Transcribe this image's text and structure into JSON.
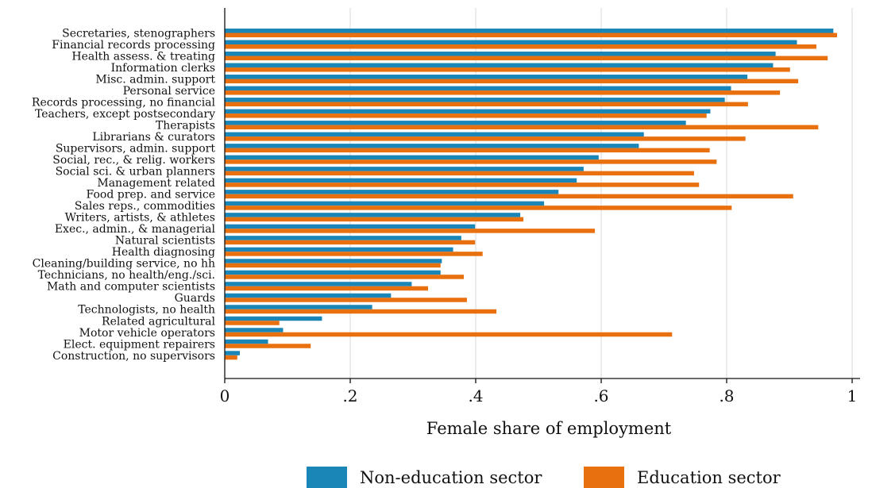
{
  "chart_data": {
    "type": "bar",
    "orientation": "horizontal",
    "xlabel": "Female share of employment",
    "xlim": [
      0,
      1
    ],
    "xticks": [
      {
        "value": 0,
        "label": "0"
      },
      {
        "value": 0.2,
        "label": ".2"
      },
      {
        "value": 0.4,
        "label": ".4"
      },
      {
        "value": 0.6,
        "label": ".6"
      },
      {
        "value": 0.8,
        "label": ".8"
      },
      {
        "value": 1,
        "label": "1"
      }
    ],
    "grid": true,
    "legend_position": "bottom",
    "categories": [
      "Secretaries, stenographers",
      "Financial records processing",
      "Health assess. & treating",
      "Information clerks",
      "Misc. admin. support",
      "Personal service",
      "Records processing, no financial",
      "Teachers, except postsecondary",
      "Therapists",
      "Librarians & curators",
      "Supervisors, admin. support",
      "Social, rec., & relig. workers",
      "Social sci. & urban planners",
      "Management related",
      "Food prep. and service",
      "Sales reps., commodities",
      "Writers, artists, & athletes",
      "Exec., admin., & managerial",
      "Natural scientists",
      "Health diagnosing",
      "Cleaning/building service, no hh",
      "Technicians, no health/eng./sci.",
      "Math and computer scientists",
      "Guards",
      "Technologists, no health",
      "Related agricultural",
      "Motor vehicle operators",
      "Elect. equipment repairers",
      "Construction, no supervisors"
    ],
    "series": [
      {
        "name": "Non-education sector",
        "color": "#1a86b8",
        "values": [
          0.97,
          0.912,
          0.878,
          0.874,
          0.833,
          0.807,
          0.797,
          0.774,
          0.735,
          0.668,
          0.66,
          0.596,
          0.572,
          0.561,
          0.532,
          0.509,
          0.471,
          0.399,
          0.377,
          0.364,
          0.346,
          0.344,
          0.298,
          0.265,
          0.235,
          0.155,
          0.093,
          0.069,
          0.024
        ]
      },
      {
        "name": "Education sector",
        "color": "#e8700f",
        "values": [
          0.976,
          0.943,
          0.961,
          0.901,
          0.914,
          0.885,
          0.834,
          0.768,
          0.946,
          0.83,
          0.773,
          0.784,
          0.748,
          0.756,
          0.906,
          0.808,
          0.476,
          0.59,
          0.399,
          0.411,
          0.344,
          0.381,
          0.324,
          0.386,
          0.433,
          0.087,
          0.713,
          0.137,
          0.02
        ]
      }
    ]
  }
}
